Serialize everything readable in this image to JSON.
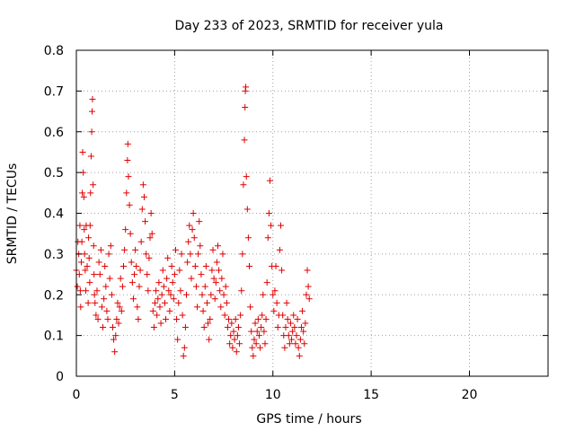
{
  "chart_data": {
    "type": "scatter",
    "title": "Day 233 of 2023, SRMTID for receiver yula",
    "xlabel": "GPS time / hours",
    "ylabel": "SRMTID / TECUs",
    "xlim": [
      0,
      24
    ],
    "ylim": [
      0,
      0.8
    ],
    "xticks": [
      0,
      5,
      10,
      15,
      20
    ],
    "yticks": [
      0,
      0.1,
      0.2,
      0.3,
      0.4,
      0.5,
      0.6,
      0.7,
      0.8
    ],
    "xtick_labels": [
      "0",
      "5",
      "10",
      "15",
      "20"
    ],
    "ytick_labels": [
      "0",
      "0.1",
      "0.2",
      "0.3",
      "0.4",
      "0.5",
      "0.6",
      "0.7",
      "0.8"
    ],
    "grid": true,
    "marker": "+",
    "color": "#e00000",
    "series": [
      {
        "name": "yula",
        "points": [
          [
            0.0,
            0.26
          ],
          [
            0.05,
            0.22
          ],
          [
            0.08,
            0.33
          ],
          [
            0.12,
            0.3
          ],
          [
            0.15,
            0.25
          ],
          [
            0.18,
            0.37
          ],
          [
            0.2,
            0.21
          ],
          [
            0.22,
            0.17
          ],
          [
            0.25,
            0.28
          ],
          [
            0.28,
            0.33
          ],
          [
            0.3,
            0.45
          ],
          [
            0.32,
            0.55
          ],
          [
            0.35,
            0.5
          ],
          [
            0.38,
            0.44
          ],
          [
            0.4,
            0.36
          ],
          [
            0.42,
            0.3
          ],
          [
            0.45,
            0.26
          ],
          [
            0.48,
            0.21
          ],
          [
            0.5,
            0.37
          ],
          [
            0.55,
            0.27
          ],
          [
            0.6,
            0.18
          ],
          [
            0.62,
            0.34
          ],
          [
            0.65,
            0.29
          ],
          [
            0.68,
            0.23
          ],
          [
            0.7,
            0.37
          ],
          [
            0.72,
            0.45
          ],
          [
            0.75,
            0.54
          ],
          [
            0.78,
            0.6
          ],
          [
            0.8,
            0.65
          ],
          [
            0.82,
            0.68
          ],
          [
            0.85,
            0.47
          ],
          [
            0.88,
            0.32
          ],
          [
            0.9,
            0.25
          ],
          [
            0.92,
            0.2
          ],
          [
            0.95,
            0.18
          ],
          [
            1.0,
            0.15
          ],
          [
            1.05,
            0.21
          ],
          [
            1.1,
            0.14
          ],
          [
            1.15,
            0.28
          ],
          [
            1.2,
            0.25
          ],
          [
            1.25,
            0.31
          ],
          [
            1.3,
            0.17
          ],
          [
            1.35,
            0.12
          ],
          [
            1.4,
            0.19
          ],
          [
            1.45,
            0.27
          ],
          [
            1.5,
            0.22
          ],
          [
            1.55,
            0.16
          ],
          [
            1.6,
            0.14
          ],
          [
            1.65,
            0.3
          ],
          [
            1.7,
            0.24
          ],
          [
            1.75,
            0.32
          ],
          [
            1.8,
            0.2
          ],
          [
            1.85,
            0.12
          ],
          [
            1.9,
            0.09
          ],
          [
            1.95,
            0.06
          ],
          [
            2.0,
            0.1
          ],
          [
            2.05,
            0.14
          ],
          [
            2.1,
            0.18
          ],
          [
            2.15,
            0.13
          ],
          [
            2.2,
            0.17
          ],
          [
            2.25,
            0.24
          ],
          [
            2.3,
            0.16
          ],
          [
            2.35,
            0.22
          ],
          [
            2.4,
            0.27
          ],
          [
            2.45,
            0.31
          ],
          [
            2.5,
            0.36
          ],
          [
            2.55,
            0.45
          ],
          [
            2.6,
            0.53
          ],
          [
            2.62,
            0.57
          ],
          [
            2.65,
            0.49
          ],
          [
            2.7,
            0.42
          ],
          [
            2.75,
            0.35
          ],
          [
            2.8,
            0.28
          ],
          [
            2.85,
            0.23
          ],
          [
            2.9,
            0.19
          ],
          [
            2.95,
            0.25
          ],
          [
            3.0,
            0.31
          ],
          [
            3.05,
            0.27
          ],
          [
            3.1,
            0.17
          ],
          [
            3.15,
            0.14
          ],
          [
            3.2,
            0.22
          ],
          [
            3.25,
            0.26
          ],
          [
            3.3,
            0.33
          ],
          [
            3.35,
            0.41
          ],
          [
            3.4,
            0.47
          ],
          [
            3.45,
            0.44
          ],
          [
            3.5,
            0.38
          ],
          [
            3.55,
            0.3
          ],
          [
            3.6,
            0.25
          ],
          [
            3.65,
            0.21
          ],
          [
            3.7,
            0.29
          ],
          [
            3.75,
            0.34
          ],
          [
            3.8,
            0.4
          ],
          [
            3.85,
            0.35
          ],
          [
            3.9,
            0.16
          ],
          [
            3.95,
            0.12
          ],
          [
            4.0,
            0.18
          ],
          [
            4.05,
            0.21
          ],
          [
            4.1,
            0.15
          ],
          [
            4.15,
            0.19
          ],
          [
            4.2,
            0.23
          ],
          [
            4.25,
            0.17
          ],
          [
            4.3,
            0.13
          ],
          [
            4.35,
            0.2
          ],
          [
            4.4,
            0.26
          ],
          [
            4.45,
            0.22
          ],
          [
            4.5,
            0.18
          ],
          [
            4.55,
            0.14
          ],
          [
            4.6,
            0.24
          ],
          [
            4.65,
            0.29
          ],
          [
            4.7,
            0.21
          ],
          [
            4.75,
            0.16
          ],
          [
            4.8,
            0.2
          ],
          [
            4.85,
            0.27
          ],
          [
            4.9,
            0.23
          ],
          [
            4.95,
            0.19
          ],
          [
            5.0,
            0.25
          ],
          [
            5.05,
            0.31
          ],
          [
            5.1,
            0.14
          ],
          [
            5.15,
            0.09
          ],
          [
            5.2,
            0.18
          ],
          [
            5.25,
            0.26
          ],
          [
            5.3,
            0.21
          ],
          [
            5.35,
            0.3
          ],
          [
            5.4,
            0.15
          ],
          [
            5.45,
            0.05
          ],
          [
            5.5,
            0.07
          ],
          [
            5.55,
            0.12
          ],
          [
            5.6,
            0.2
          ],
          [
            5.65,
            0.28
          ],
          [
            5.7,
            0.33
          ],
          [
            5.75,
            0.37
          ],
          [
            5.8,
            0.3
          ],
          [
            5.85,
            0.24
          ],
          [
            5.9,
            0.36
          ],
          [
            5.95,
            0.4
          ],
          [
            6.0,
            0.34
          ],
          [
            6.05,
            0.27
          ],
          [
            6.1,
            0.22
          ],
          [
            6.15,
            0.17
          ],
          [
            6.2,
            0.3
          ],
          [
            6.25,
            0.38
          ],
          [
            6.3,
            0.32
          ],
          [
            6.35,
            0.25
          ],
          [
            6.4,
            0.2
          ],
          [
            6.45,
            0.16
          ],
          [
            6.5,
            0.12
          ],
          [
            6.55,
            0.22
          ],
          [
            6.6,
            0.27
          ],
          [
            6.65,
            0.18
          ],
          [
            6.7,
            0.13
          ],
          [
            6.75,
            0.09
          ],
          [
            6.8,
            0.14
          ],
          [
            6.85,
            0.2
          ],
          [
            6.9,
            0.26
          ],
          [
            6.95,
            0.31
          ],
          [
            7.0,
            0.24
          ],
          [
            7.05,
            0.19
          ],
          [
            7.1,
            0.23
          ],
          [
            7.15,
            0.28
          ],
          [
            7.2,
            0.32
          ],
          [
            7.25,
            0.26
          ],
          [
            7.3,
            0.21
          ],
          [
            7.35,
            0.17
          ],
          [
            7.4,
            0.24
          ],
          [
            7.45,
            0.3
          ],
          [
            7.5,
            0.2
          ],
          [
            7.55,
            0.15
          ],
          [
            7.6,
            0.22
          ],
          [
            7.65,
            0.18
          ],
          [
            7.7,
            0.12
          ],
          [
            7.75,
            0.14
          ],
          [
            7.8,
            0.08
          ],
          [
            7.85,
            0.1
          ],
          [
            7.9,
            0.13
          ],
          [
            7.95,
            0.07
          ],
          [
            8.0,
            0.11
          ],
          [
            8.05,
            0.09
          ],
          [
            8.1,
            0.14
          ],
          [
            8.15,
            0.06
          ],
          [
            8.2,
            0.1
          ],
          [
            8.25,
            0.12
          ],
          [
            8.3,
            0.08
          ],
          [
            8.35,
            0.15
          ],
          [
            8.4,
            0.21
          ],
          [
            8.45,
            0.3
          ],
          [
            8.5,
            0.47
          ],
          [
            8.55,
            0.58
          ],
          [
            8.58,
            0.66
          ],
          [
            8.6,
            0.7
          ],
          [
            8.62,
            0.71
          ],
          [
            8.65,
            0.49
          ],
          [
            8.7,
            0.41
          ],
          [
            8.75,
            0.34
          ],
          [
            8.8,
            0.27
          ],
          [
            8.85,
            0.17
          ],
          [
            8.9,
            0.11
          ],
          [
            8.95,
            0.07
          ],
          [
            9.0,
            0.05
          ],
          [
            9.05,
            0.09
          ],
          [
            9.1,
            0.13
          ],
          [
            9.15,
            0.08
          ],
          [
            9.2,
            0.11
          ],
          [
            9.25,
            0.14
          ],
          [
            9.3,
            0.1
          ],
          [
            9.35,
            0.07
          ],
          [
            9.4,
            0.12
          ],
          [
            9.45,
            0.15
          ],
          [
            9.5,
            0.2
          ],
          [
            9.55,
            0.11
          ],
          [
            9.6,
            0.08
          ],
          [
            9.65,
            0.14
          ],
          [
            9.7,
            0.23
          ],
          [
            9.75,
            0.34
          ],
          [
            9.8,
            0.4
          ],
          [
            9.85,
            0.48
          ],
          [
            9.9,
            0.37
          ],
          [
            9.95,
            0.27
          ],
          [
            10.0,
            0.2
          ],
          [
            10.05,
            0.16
          ],
          [
            10.1,
            0.21
          ],
          [
            10.15,
            0.27
          ],
          [
            10.2,
            0.18
          ],
          [
            10.25,
            0.12
          ],
          [
            10.3,
            0.15
          ],
          [
            10.35,
            0.31
          ],
          [
            10.4,
            0.37
          ],
          [
            10.45,
            0.26
          ],
          [
            10.5,
            0.15
          ],
          [
            10.55,
            0.1
          ],
          [
            10.6,
            0.07
          ],
          [
            10.65,
            0.12
          ],
          [
            10.7,
            0.18
          ],
          [
            10.75,
            0.14
          ],
          [
            10.8,
            0.1
          ],
          [
            10.85,
            0.08
          ],
          [
            10.9,
            0.13
          ],
          [
            10.95,
            0.09
          ],
          [
            11.0,
            0.11
          ],
          [
            11.05,
            0.15
          ],
          [
            11.1,
            0.12
          ],
          [
            11.15,
            0.08
          ],
          [
            11.2,
            0.1
          ],
          [
            11.25,
            0.14
          ],
          [
            11.3,
            0.07
          ],
          [
            11.35,
            0.05
          ],
          [
            11.4,
            0.09
          ],
          [
            11.45,
            0.12
          ],
          [
            11.5,
            0.16
          ],
          [
            11.55,
            0.11
          ],
          [
            11.6,
            0.08
          ],
          [
            11.65,
            0.13
          ],
          [
            11.7,
            0.2
          ],
          [
            11.75,
            0.26
          ],
          [
            11.8,
            0.22
          ],
          [
            11.85,
            0.19
          ]
        ]
      }
    ]
  }
}
